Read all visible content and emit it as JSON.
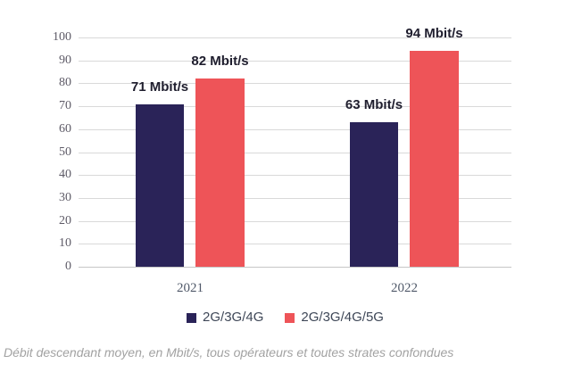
{
  "chart_data": {
    "type": "bar",
    "title": "",
    "xlabel": "",
    "ylabel": "",
    "categories": [
      "2021",
      "2022"
    ],
    "series": [
      {
        "name": "2G/3G/4G",
        "color": "#2a2358",
        "values": [
          71,
          63
        ],
        "labels": [
          "71 Mbit/s",
          "63 Mbit/s"
        ]
      },
      {
        "name": "2G/3G/4G/5G",
        "color": "#ee5458",
        "values": [
          82,
          94
        ],
        "labels": [
          "82 Mbit/s",
          "94 Mbit/s"
        ]
      }
    ],
    "ylim": [
      0,
      100
    ],
    "yticks": [
      0,
      10,
      20,
      30,
      40,
      50,
      60,
      70,
      80,
      90,
      100
    ],
    "grid": "horizontal",
    "legend_position": "bottom"
  },
  "caption": "Débit descendant moyen, en Mbit/s, tous opérateurs et toutes strates confondues",
  "colors": {
    "grid": "#d9d9d9",
    "axis_line": "#c6c6c6",
    "ytick_text": "#5d5a66",
    "xtick_text": "#515a6a",
    "bar_label_text": "#1f1e2e",
    "legend_text": "#3e4757",
    "caption_text": "#a2a2a2"
  }
}
